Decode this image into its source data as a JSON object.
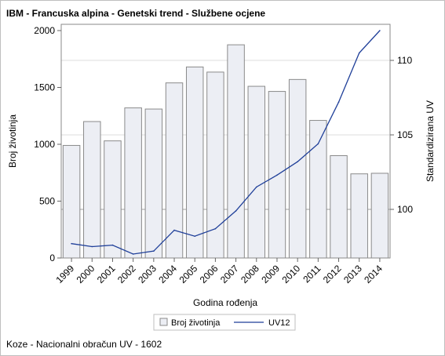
{
  "title": "IBM - Francuska alpina - Genetski trend - Službene ocjene",
  "footnote": "Koze - Nacionalni obračun UV - 1602",
  "chart_data": {
    "type": "bar+line",
    "categories": [
      "1999",
      "2000",
      "2001",
      "2002",
      "2003",
      "2004",
      "2005",
      "2006",
      "2007",
      "2008",
      "2009",
      "2010",
      "2011",
      "2012",
      "2013",
      "2014"
    ],
    "series": [
      {
        "name": "Broj životinja",
        "type": "bar",
        "axis": "left",
        "color": "#eceef4",
        "values": [
          990,
          1200,
          1030,
          1320,
          1310,
          1540,
          1680,
          1635,
          1875,
          1510,
          1465,
          1570,
          1210,
          900,
          740,
          745
        ]
      },
      {
        "name": "UV12",
        "type": "line",
        "axis": "right",
        "color": "#1f3f99",
        "values": [
          97.7,
          97.5,
          97.6,
          97.0,
          97.2,
          98.6,
          98.2,
          98.7,
          99.9,
          101.5,
          102.3,
          103.2,
          104.4,
          107.2,
          110.5,
          112.0
        ]
      }
    ],
    "xlabel": "Godina rođenja",
    "ylabel": "Broj životinja",
    "y2label": "Standardizirana UV",
    "ylim": [
      0,
      2000
    ],
    "yticks": [
      0,
      500,
      1000,
      1500,
      2000
    ],
    "y2ticks": [
      100,
      105,
      110
    ],
    "legend_placement": "bottom-center",
    "grid": "right-axis reference lines"
  }
}
